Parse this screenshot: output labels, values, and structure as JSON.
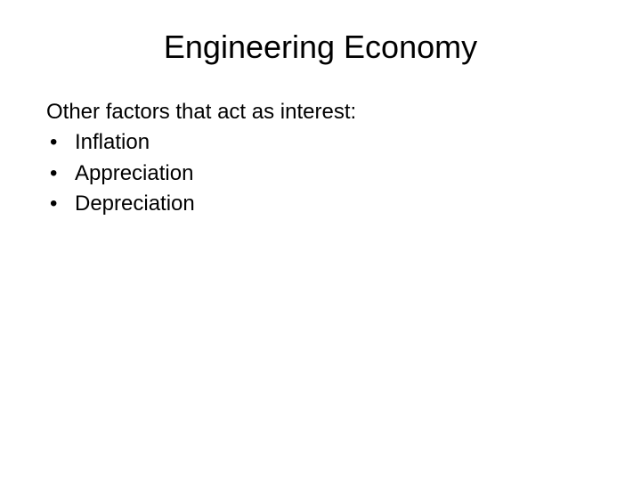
{
  "slide": {
    "title": "Engineering Economy",
    "intro": "Other factors that act as interest:",
    "bullets": [
      "Inflation",
      "Appreciation",
      "Depreciation"
    ],
    "colors": {
      "background": "#ffffff",
      "text": "#000000"
    },
    "typography": {
      "title_fontsize": 36,
      "body_fontsize": 24,
      "font_family": "Arial"
    }
  }
}
